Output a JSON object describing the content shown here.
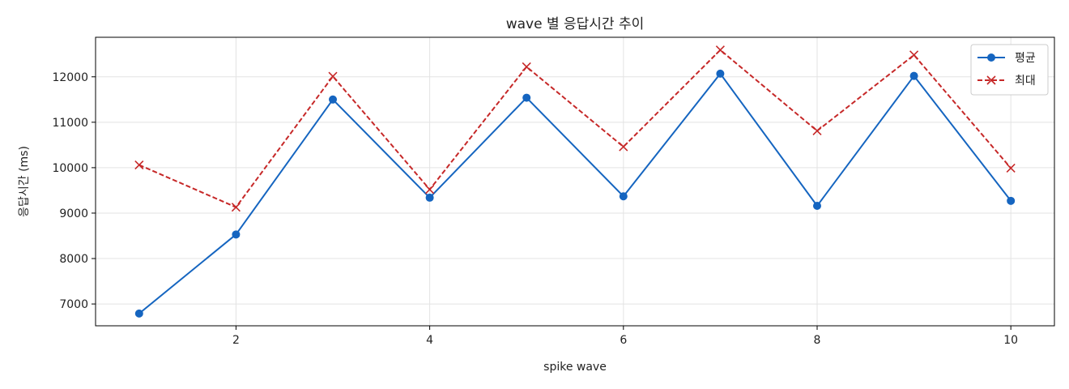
{
  "chart_data": {
    "type": "line",
    "title": "wave 별 응답시간 추이",
    "xlabel": "spike wave",
    "ylabel": "응답시간 (ms)",
    "x": [
      1,
      2,
      3,
      4,
      5,
      6,
      7,
      8,
      9,
      10
    ],
    "x_ticks": [
      2,
      4,
      6,
      8,
      10
    ],
    "y_ticks": [
      7000,
      8000,
      9000,
      10000,
      11000,
      12000
    ],
    "xlim": [
      0.55,
      10.45
    ],
    "ylim": [
      6520,
      12870
    ],
    "grid": true,
    "legend_position": "top-right",
    "series": [
      {
        "name": "평균",
        "color": "#1565c0",
        "marker": "circle",
        "line_style": "solid",
        "values": [
          6790,
          8530,
          11500,
          9340,
          11540,
          9370,
          12070,
          9160,
          12020,
          9270
        ]
      },
      {
        "name": "최대",
        "color": "#c62828",
        "marker": "x",
        "line_style": "dashed",
        "values": [
          10060,
          9130,
          12010,
          9520,
          12220,
          10460,
          12590,
          10810,
          12480,
          9990
        ]
      }
    ]
  }
}
